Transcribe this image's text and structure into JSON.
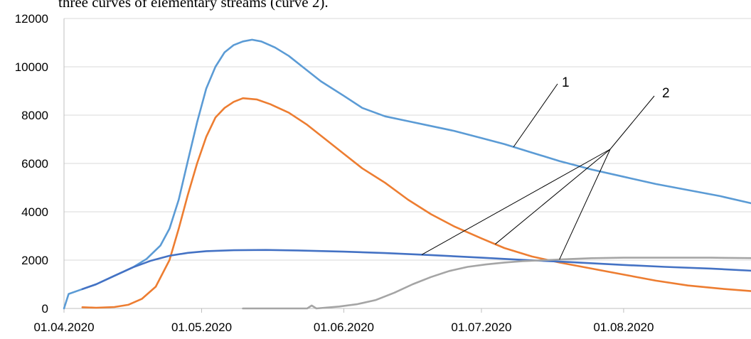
{
  "caption": "three curves of elementary streams (curve 2).",
  "chart_data": {
    "type": "line",
    "title": "",
    "xlabel": "",
    "ylabel": "",
    "x_range": [
      "2020-04-01",
      "2020-08-30"
    ],
    "ylim": [
      0,
      12000
    ],
    "y_ticks": [
      0,
      2000,
      4000,
      6000,
      8000,
      10000,
      12000
    ],
    "x_ticks": [
      {
        "date": "2020-04-01",
        "label": "01.04.2020"
      },
      {
        "date": "2020-05-01",
        "label": "01.05.2020"
      },
      {
        "date": "2020-06-01",
        "label": "01.06.2020"
      },
      {
        "date": "2020-07-01",
        "label": "01.07.2020"
      },
      {
        "date": "2020-08-01",
        "label": "01.08.2020"
      }
    ],
    "grid": "horizontal",
    "legend": "none",
    "series": [
      {
        "color": "#5B9BD5",
        "points": [
          [
            "2020-04-01",
            0
          ],
          [
            "2020-04-02",
            600
          ],
          [
            "2020-04-05",
            800
          ],
          [
            "2020-04-08",
            1000
          ],
          [
            "2020-04-12",
            1350
          ],
          [
            "2020-04-16",
            1700
          ],
          [
            "2020-04-19",
            2050
          ],
          [
            "2020-04-22",
            2600
          ],
          [
            "2020-04-24",
            3300
          ],
          [
            "2020-04-26",
            4500
          ],
          [
            "2020-04-28",
            6100
          ],
          [
            "2020-04-30",
            7700
          ],
          [
            "2020-05-02",
            9100
          ],
          [
            "2020-05-04",
            10000
          ],
          [
            "2020-05-06",
            10600
          ],
          [
            "2020-05-08",
            10900
          ],
          [
            "2020-05-10",
            11050
          ],
          [
            "2020-05-12",
            11120
          ],
          [
            "2020-05-14",
            11050
          ],
          [
            "2020-05-17",
            10800
          ],
          [
            "2020-05-20",
            10450
          ],
          [
            "2020-05-23",
            10000
          ],
          [
            "2020-05-27",
            9400
          ],
          [
            "2020-06-01",
            8800
          ],
          [
            "2020-06-05",
            8300
          ],
          [
            "2020-06-10",
            7950
          ],
          [
            "2020-06-15",
            7750
          ],
          [
            "2020-06-20",
            7550
          ],
          [
            "2020-06-25",
            7350
          ],
          [
            "2020-07-01",
            7050
          ],
          [
            "2020-07-06",
            6800
          ],
          [
            "2020-07-12",
            6450
          ],
          [
            "2020-07-18",
            6100
          ],
          [
            "2020-07-25",
            5750
          ],
          [
            "2020-08-01",
            5450
          ],
          [
            "2020-08-08",
            5150
          ],
          [
            "2020-08-15",
            4900
          ],
          [
            "2020-08-22",
            4650
          ],
          [
            "2020-08-30",
            4300
          ]
        ]
      },
      {
        "color": "#ED7D31",
        "points": [
          [
            "2020-04-05",
            50
          ],
          [
            "2020-04-08",
            30
          ],
          [
            "2020-04-12",
            60
          ],
          [
            "2020-04-15",
            150
          ],
          [
            "2020-04-18",
            400
          ],
          [
            "2020-04-21",
            900
          ],
          [
            "2020-04-24",
            2000
          ],
          [
            "2020-04-26",
            3300
          ],
          [
            "2020-04-28",
            4700
          ],
          [
            "2020-04-30",
            6000
          ],
          [
            "2020-05-02",
            7100
          ],
          [
            "2020-05-04",
            7900
          ],
          [
            "2020-05-06",
            8300
          ],
          [
            "2020-05-08",
            8550
          ],
          [
            "2020-05-10",
            8700
          ],
          [
            "2020-05-13",
            8650
          ],
          [
            "2020-05-16",
            8450
          ],
          [
            "2020-05-20",
            8100
          ],
          [
            "2020-05-24",
            7600
          ],
          [
            "2020-05-28",
            7000
          ],
          [
            "2020-06-01",
            6400
          ],
          [
            "2020-06-05",
            5800
          ],
          [
            "2020-06-10",
            5200
          ],
          [
            "2020-06-15",
            4500
          ],
          [
            "2020-06-20",
            3900
          ],
          [
            "2020-06-25",
            3400
          ],
          [
            "2020-07-01",
            2900
          ],
          [
            "2020-07-06",
            2500
          ],
          [
            "2020-07-12",
            2150
          ],
          [
            "2020-07-18",
            1900
          ],
          [
            "2020-07-25",
            1650
          ],
          [
            "2020-08-01",
            1400
          ],
          [
            "2020-08-08",
            1150
          ],
          [
            "2020-08-15",
            950
          ],
          [
            "2020-08-22",
            820
          ],
          [
            "2020-08-30",
            700
          ]
        ]
      },
      {
        "color": "#4472C4",
        "points": [
          [
            "2020-04-05",
            800
          ],
          [
            "2020-04-08",
            1000
          ],
          [
            "2020-04-12",
            1350
          ],
          [
            "2020-04-16",
            1700
          ],
          [
            "2020-04-20",
            1980
          ],
          [
            "2020-04-24",
            2180
          ],
          [
            "2020-04-28",
            2300
          ],
          [
            "2020-05-02",
            2370
          ],
          [
            "2020-05-08",
            2410
          ],
          [
            "2020-05-15",
            2420
          ],
          [
            "2020-05-22",
            2400
          ],
          [
            "2020-06-01",
            2350
          ],
          [
            "2020-06-10",
            2290
          ],
          [
            "2020-06-20",
            2210
          ],
          [
            "2020-07-01",
            2100
          ],
          [
            "2020-07-10",
            2010
          ],
          [
            "2020-07-20",
            1920
          ],
          [
            "2020-08-01",
            1800
          ],
          [
            "2020-08-10",
            1720
          ],
          [
            "2020-08-20",
            1650
          ],
          [
            "2020-08-30",
            1550
          ]
        ]
      },
      {
        "color": "#A5A5A5",
        "points": [
          [
            "2020-05-10",
            0
          ],
          [
            "2020-05-24",
            0
          ],
          [
            "2020-05-25",
            120
          ],
          [
            "2020-05-26",
            0
          ],
          [
            "2020-05-31",
            80
          ],
          [
            "2020-06-04",
            180
          ],
          [
            "2020-06-08",
            350
          ],
          [
            "2020-06-12",
            650
          ],
          [
            "2020-06-16",
            1000
          ],
          [
            "2020-06-20",
            1300
          ],
          [
            "2020-06-24",
            1550
          ],
          [
            "2020-06-28",
            1720
          ],
          [
            "2020-07-02",
            1820
          ],
          [
            "2020-07-06",
            1900
          ],
          [
            "2020-07-10",
            1960
          ],
          [
            "2020-07-15",
            2000
          ],
          [
            "2020-07-20",
            2040
          ],
          [
            "2020-07-25",
            2080
          ],
          [
            "2020-08-01",
            2100
          ],
          [
            "2020-08-10",
            2100
          ],
          [
            "2020-08-20",
            2100
          ],
          [
            "2020-08-30",
            2080
          ]
        ]
      }
    ],
    "annotations": [
      {
        "label": "1",
        "targets": [
          {
            "series": 0,
            "date": "2020-07-08"
          }
        ]
      },
      {
        "label": "2",
        "targets": [
          {
            "series": 2,
            "date": "2020-06-18"
          },
          {
            "series": 1,
            "date": "2020-07-04"
          },
          {
            "series": 3,
            "date": "2020-07-18"
          }
        ]
      }
    ]
  }
}
